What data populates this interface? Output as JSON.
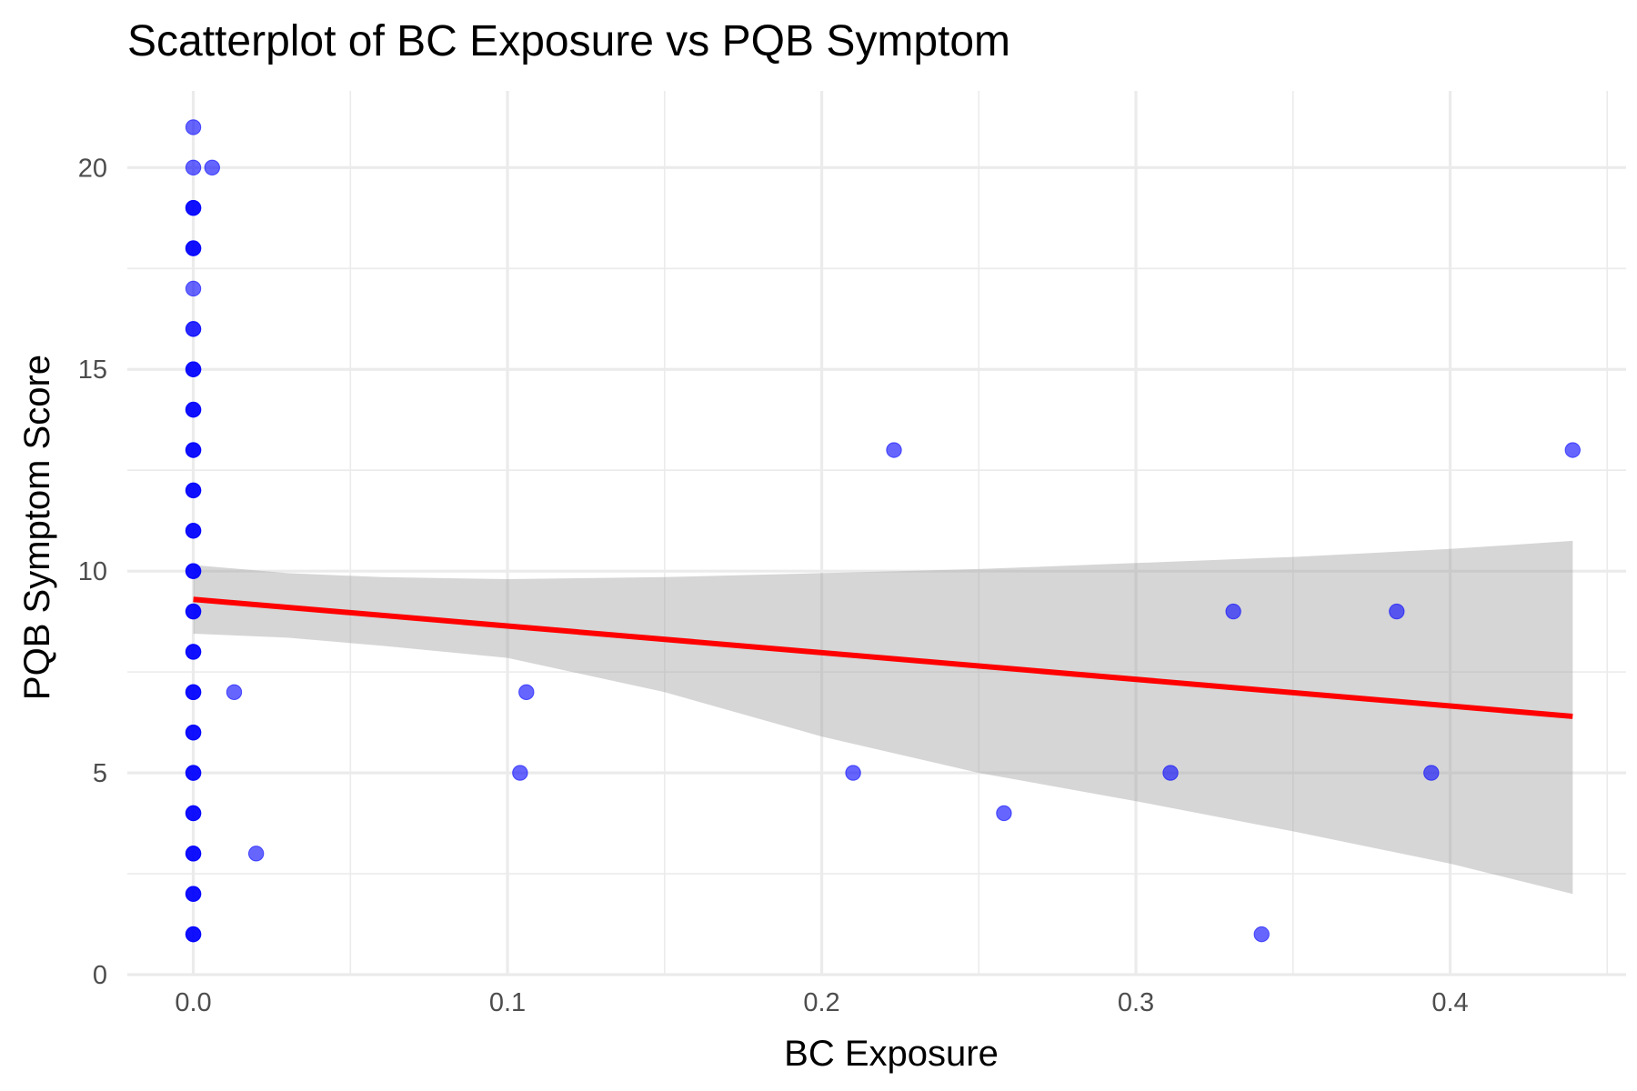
{
  "chart_data": {
    "type": "scatter",
    "title": "Scatterplot of BC Exposure vs PQB Symptom",
    "xlabel": "BC Exposure",
    "ylabel": "PQB Symptom Score",
    "xlim": [
      -0.021,
      0.456
    ],
    "ylim": [
      0,
      21.9
    ],
    "x_ticks": [
      0.0,
      0.1,
      0.2,
      0.3,
      0.4
    ],
    "x_tick_labels": [
      "0.0",
      "0.1",
      "0.2",
      "0.3",
      "0.4"
    ],
    "y_ticks": [
      0,
      5,
      10,
      15,
      20
    ],
    "y_tick_labels": [
      "0",
      "5",
      "10",
      "15",
      "20"
    ],
    "grid": true,
    "legend": "none",
    "colors": {
      "points": "#0000ff",
      "fit_line": "#ff0000",
      "confidence_band": "#999999"
    },
    "points": [
      {
        "x": 0.0,
        "y": 21
      },
      {
        "x": 0.0,
        "y": 20
      },
      {
        "x": 0.006,
        "y": 20
      },
      {
        "x": 0.0,
        "y": 19
      },
      {
        "x": 0.0,
        "y": 19
      },
      {
        "x": 0.0,
        "y": 19
      },
      {
        "x": 0.0,
        "y": 18
      },
      {
        "x": 0.0,
        "y": 18
      },
      {
        "x": 0.0,
        "y": 18
      },
      {
        "x": 0.0,
        "y": 17
      },
      {
        "x": 0.0,
        "y": 16
      },
      {
        "x": 0.0,
        "y": 16
      },
      {
        "x": 0.0,
        "y": 15
      },
      {
        "x": 0.0,
        "y": 15
      },
      {
        "x": 0.0,
        "y": 15
      },
      {
        "x": 0.0,
        "y": 14
      },
      {
        "x": 0.0,
        "y": 14
      },
      {
        "x": 0.0,
        "y": 14
      },
      {
        "x": 0.0,
        "y": 13
      },
      {
        "x": 0.0,
        "y": 13
      },
      {
        "x": 0.0,
        "y": 13
      },
      {
        "x": 0.0,
        "y": 12
      },
      {
        "x": 0.0,
        "y": 12
      },
      {
        "x": 0.0,
        "y": 12
      },
      {
        "x": 0.0,
        "y": 11
      },
      {
        "x": 0.0,
        "y": 11
      },
      {
        "x": 0.0,
        "y": 11
      },
      {
        "x": 0.0,
        "y": 10
      },
      {
        "x": 0.0,
        "y": 10
      },
      {
        "x": 0.0,
        "y": 10
      },
      {
        "x": 0.0,
        "y": 9
      },
      {
        "x": 0.0,
        "y": 9
      },
      {
        "x": 0.0,
        "y": 9
      },
      {
        "x": 0.0,
        "y": 8
      },
      {
        "x": 0.0,
        "y": 8
      },
      {
        "x": 0.0,
        "y": 8
      },
      {
        "x": 0.0,
        "y": 7
      },
      {
        "x": 0.0,
        "y": 7
      },
      {
        "x": 0.0,
        "y": 7
      },
      {
        "x": 0.0,
        "y": 6
      },
      {
        "x": 0.0,
        "y": 6
      },
      {
        "x": 0.0,
        "y": 6
      },
      {
        "x": 0.0,
        "y": 5
      },
      {
        "x": 0.0,
        "y": 5
      },
      {
        "x": 0.0,
        "y": 5
      },
      {
        "x": 0.0,
        "y": 4
      },
      {
        "x": 0.0,
        "y": 4
      },
      {
        "x": 0.0,
        "y": 4
      },
      {
        "x": 0.0,
        "y": 3
      },
      {
        "x": 0.0,
        "y": 3
      },
      {
        "x": 0.0,
        "y": 3
      },
      {
        "x": 0.0,
        "y": 2
      },
      {
        "x": 0.0,
        "y": 2
      },
      {
        "x": 0.0,
        "y": 2
      },
      {
        "x": 0.0,
        "y": 1
      },
      {
        "x": 0.0,
        "y": 1
      },
      {
        "x": 0.0,
        "y": 1
      },
      {
        "x": 0.013,
        "y": 7
      },
      {
        "x": 0.02,
        "y": 3
      },
      {
        "x": 0.104,
        "y": 5
      },
      {
        "x": 0.106,
        "y": 7
      },
      {
        "x": 0.21,
        "y": 5
      },
      {
        "x": 0.223,
        "y": 13
      },
      {
        "x": 0.258,
        "y": 4
      },
      {
        "x": 0.311,
        "y": 5
      },
      {
        "x": 0.331,
        "y": 9
      },
      {
        "x": 0.34,
        "y": 1
      },
      {
        "x": 0.383,
        "y": 9
      },
      {
        "x": 0.394,
        "y": 5
      },
      {
        "x": 0.439,
        "y": 13
      }
    ],
    "fit_line": {
      "x": [
        0.0,
        0.439
      ],
      "y": [
        9.3,
        6.4
      ]
    },
    "confidence_band": {
      "x": [
        0.0,
        0.03,
        0.06,
        0.1,
        0.15,
        0.2,
        0.25,
        0.3,
        0.35,
        0.4,
        0.439
      ],
      "upper": [
        10.15,
        9.95,
        9.85,
        9.8,
        9.85,
        9.95,
        10.05,
        10.2,
        10.35,
        10.55,
        10.75
      ],
      "lower": [
        8.45,
        8.35,
        8.15,
        7.85,
        7.0,
        5.9,
        5.0,
        4.3,
        3.55,
        2.75,
        2.0
      ]
    }
  }
}
